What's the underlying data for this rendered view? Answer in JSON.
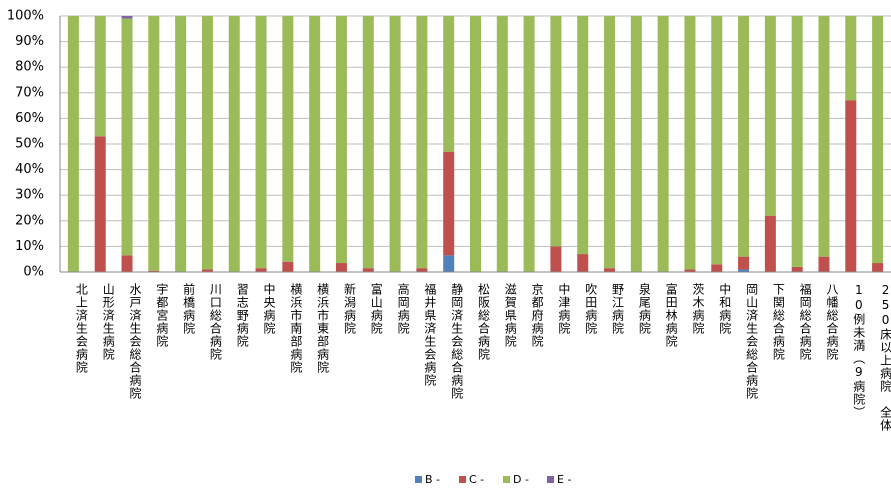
{
  "chart_data": {
    "type": "stacked_bar_100",
    "categories": [
      "北上済生会病院",
      "山形済生病院",
      "水戸済生会総合病院",
      "宇都宮病院",
      "前橋病院",
      "川口総合病院",
      "習志野病院",
      "中央病院",
      "横浜市南部病院",
      "横浜市東部病院",
      "新潟病院",
      "富山病院",
      "高岡病院",
      "福井県済生会病院",
      "静岡済生会総合病院",
      "松阪総合病院",
      "滋賀県病院",
      "京都府病院",
      "中津病院",
      "吹田病院",
      "野江病院",
      "泉尾病院",
      "富田林病院",
      "茨木病院",
      "中和病院",
      "岡山済生会総合病院",
      "下関総合病院",
      "福岡総合病院",
      "八幡総合病院",
      "10例未満（9病院）",
      "250床以上病院　全体"
    ],
    "series": [
      {
        "name": "B -",
        "color": "#4f81bd",
        "values": [
          0,
          0,
          0,
          0,
          0,
          0,
          0,
          0,
          0,
          0,
          0,
          0,
          0,
          0,
          6.5,
          0,
          0,
          0,
          0,
          0,
          0,
          0,
          0,
          0,
          0,
          1,
          0,
          0,
          0,
          0,
          0
        ]
      },
      {
        "name": "C -",
        "color": "#c0504d",
        "values": [
          0,
          53,
          6.5,
          0.5,
          0,
          1,
          0,
          1.5,
          4,
          0,
          3.5,
          1.5,
          0,
          1.5,
          40.5,
          0,
          0,
          0,
          10,
          7,
          1.5,
          0,
          0,
          1,
          3,
          5,
          22,
          2,
          6,
          67,
          3.5
        ]
      },
      {
        "name": "D -",
        "color": "#9bbb59",
        "values": [
          100,
          47,
          92.5,
          99.5,
          100,
          99,
          100,
          98.5,
          96,
          100,
          96.5,
          98.5,
          100,
          98.5,
          53,
          100,
          100,
          100,
          90,
          93,
          98.5,
          100,
          100,
          99,
          97,
          94,
          78,
          98,
          94,
          33,
          96.5
        ]
      },
      {
        "name": "E -",
        "color": "#8064a2",
        "values": [
          0,
          0,
          1,
          0,
          0,
          0,
          0,
          0,
          0,
          0,
          0,
          0,
          0,
          0,
          0,
          0,
          0,
          0,
          0,
          0,
          0,
          0,
          0,
          0,
          0,
          0,
          0,
          0,
          0,
          0,
          0
        ]
      }
    ],
    "ylim": [
      0,
      100
    ],
    "yticks": [
      {
        "value": 0,
        "label": "0%"
      },
      {
        "value": 10,
        "label": "10%"
      },
      {
        "value": 20,
        "label": "20%"
      },
      {
        "value": 30,
        "label": "30%"
      },
      {
        "value": 40,
        "label": "40%"
      },
      {
        "value": 50,
        "label": "50%"
      },
      {
        "value": 60,
        "label": "60%"
      },
      {
        "value": 70,
        "label": "70%"
      },
      {
        "value": 80,
        "label": "80%"
      },
      {
        "value": 90,
        "label": "90%"
      },
      {
        "value": 100,
        "label": "100%"
      }
    ],
    "grid": true,
    "legend": "bottom"
  }
}
